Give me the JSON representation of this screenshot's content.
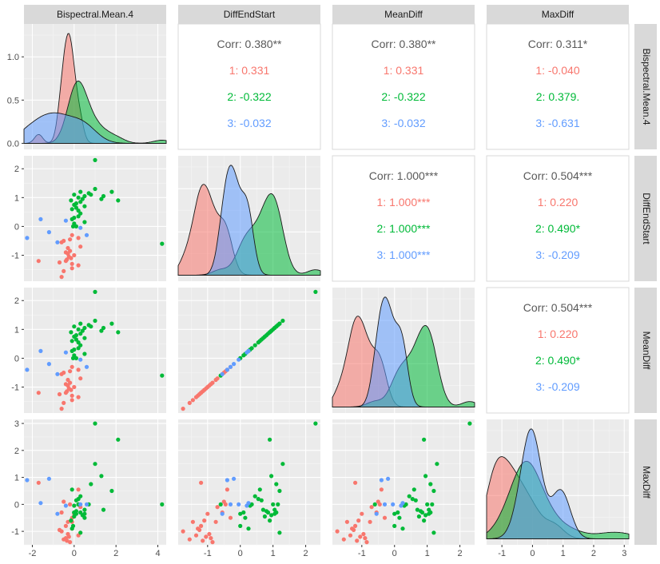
{
  "chart_data": {
    "type": "scatter-matrix",
    "variables": [
      "Bispectral.Mean.4",
      "DiffEndStart",
      "MeanDiff",
      "MaxDiff"
    ],
    "group_colors": {
      "1": "#F8766D",
      "2": "#00BA38",
      "3": "#619CFF"
    },
    "overall_color": "#595959",
    "axes": {
      "Bispectral.Mean.4": {
        "range": [
          -2.4,
          4.4
        ],
        "ticks": [
          -2,
          0,
          2,
          4
        ],
        "tick_labels": [
          "-2",
          "0",
          "2",
          "4"
        ]
      },
      "DiffEndStart": {
        "range": [
          -1.9,
          2.45
        ],
        "ticks": [
          -1,
          0,
          1,
          2
        ],
        "tick_labels": [
          "-1",
          "0",
          "1",
          "2"
        ]
      },
      "MeanDiff": {
        "range": [
          -1.9,
          2.45
        ],
        "ticks": [
          -1,
          0,
          1,
          2
        ],
        "tick_labels": [
          "-1",
          "0",
          "1",
          "2"
        ]
      },
      "MaxDiff": {
        "range": [
          -1.5,
          3.15
        ],
        "ticks": [
          -1,
          0,
          1,
          2,
          3
        ],
        "tick_labels": [
          "-1",
          "0",
          "1",
          "2",
          "3"
        ]
      }
    },
    "density_y_axis": {
      "range": [
        -0.07,
        1.38
      ],
      "ticks": [
        0.0,
        0.5,
        1.0
      ],
      "tick_labels": [
        "0.0",
        "0.5",
        "1.0"
      ]
    },
    "correlations": [
      {
        "row": "Bispectral.Mean.4",
        "col": "DiffEndStart",
        "overall": "Corr: 0.380**",
        "g1": "1: 0.331",
        "g2": "2: -0.322",
        "g3": "3: -0.032"
      },
      {
        "row": "Bispectral.Mean.4",
        "col": "MeanDiff",
        "overall": "Corr: 0.380**",
        "g1": "1: 0.331",
        "g2": "2: -0.322",
        "g3": "3: -0.032"
      },
      {
        "row": "Bispectral.Mean.4",
        "col": "MaxDiff",
        "overall": "Corr: 0.311*",
        "g1": "1: -0.040",
        "g2": "2: 0.379.",
        "g3": "3: -0.631"
      },
      {
        "row": "DiffEndStart",
        "col": "MeanDiff",
        "overall": "Corr: 1.000***",
        "g1": "1: 1.000***",
        "g2": "2: 1.000***",
        "g3": "3: 1.000***"
      },
      {
        "row": "DiffEndStart",
        "col": "MaxDiff",
        "overall": "Corr: 0.504***",
        "g1": "1: 0.220",
        "g2": "2: 0.490*",
        "g3": "3: -0.209"
      },
      {
        "row": "MeanDiff",
        "col": "MaxDiff",
        "overall": "Corr: 0.504***",
        "g1": "1: 0.220",
        "g2": "2: 0.490*",
        "g3": "3: -0.209"
      }
    ],
    "points": {
      "names": [
        "Bispectral.Mean.4",
        "DiffEndStart",
        "MaxDiff"
      ],
      "g1": [
        [
          -0.6,
          -1.75,
          -1.0
        ],
        [
          -0.5,
          -1.55,
          -1.3
        ],
        [
          -0.1,
          -1.45,
          -0.65
        ],
        [
          0.2,
          -1.35,
          -1.15
        ],
        [
          -0.1,
          -1.3,
          -0.9
        ],
        [
          -0.7,
          -1.25,
          -0.95
        ],
        [
          -0.4,
          -1.2,
          -0.8
        ],
        [
          -0.35,
          -1.15,
          -1.35
        ],
        [
          -0.15,
          -1.1,
          -0.6
        ],
        [
          -0.25,
          -1.05,
          -1.2
        ],
        [
          0.0,
          -1.0,
          -0.35
        ],
        [
          -0.3,
          -0.95,
          -1.1
        ],
        [
          -0.4,
          -0.9,
          -1.25
        ],
        [
          -0.2,
          -0.85,
          -1.4
        ],
        [
          -0.3,
          -0.75,
          -0.65
        ],
        [
          0.3,
          -0.7,
          -0.1
        ],
        [
          -0.6,
          -0.55,
          -0.3
        ],
        [
          -0.5,
          -0.5,
          0.1
        ],
        [
          -0.2,
          -0.45,
          0.0
        ],
        [
          0.2,
          -0.4,
          0.55
        ],
        [
          -0.1,
          -0.3,
          -0.5
        ],
        [
          -1.7,
          -1.2,
          0.8
        ]
      ],
      "g2": [
        [
          0.1,
          0.0,
          -0.35
        ],
        [
          0.0,
          0.1,
          -0.3
        ],
        [
          0.5,
          0.15,
          -0.5
        ],
        [
          -0.1,
          0.25,
          -0.9
        ],
        [
          0.0,
          0.3,
          -0.05
        ],
        [
          0.2,
          0.35,
          0.0
        ],
        [
          0.3,
          0.45,
          0.3
        ],
        [
          0.2,
          0.55,
          0.2
        ],
        [
          -0.1,
          0.6,
          0.55
        ],
        [
          0.1,
          0.65,
          0.15
        ],
        [
          0.5,
          0.7,
          -0.2
        ],
        [
          0.0,
          0.75,
          -0.45
        ],
        [
          0.1,
          0.8,
          -0.25
        ],
        [
          0.3,
          0.85,
          -0.3
        ],
        [
          -0.15,
          0.9,
          -0.6
        ],
        [
          0.4,
          0.95,
          -0.4
        ],
        [
          0.2,
          1.0,
          0.0
        ],
        [
          0.5,
          1.05,
          -0.35
        ],
        [
          0.0,
          1.1,
          -0.3
        ],
        [
          0.7,
          1.15,
          0.0
        ],
        [
          0.3,
          1.2,
          -1.05
        ],
        [
          1.0,
          1.3,
          1.5
        ],
        [
          1.3,
          0.95,
          1.05
        ],
        [
          0.8,
          1.1,
          0.75
        ],
        [
          1.4,
          1.05,
          -0.2
        ],
        [
          1.8,
          1.2,
          0.5
        ],
        [
          2.1,
          0.9,
          2.4
        ],
        [
          1.0,
          2.3,
          3.0
        ],
        [
          4.2,
          -0.6,
          0.0
        ],
        [
          -0.05,
          0.0,
          -0.8
        ]
      ],
      "g3": [
        [
          -2.25,
          -0.4,
          0.9
        ],
        [
          -1.6,
          0.25,
          0.05
        ],
        [
          -1.2,
          -0.2,
          0.95
        ],
        [
          -0.8,
          -0.55,
          -0.35
        ],
        [
          0.6,
          -0.3,
          0.0
        ],
        [
          -0.4,
          0.2,
          -0.05
        ],
        [
          0.3,
          -0.05,
          0.0
        ]
      ]
    }
  }
}
